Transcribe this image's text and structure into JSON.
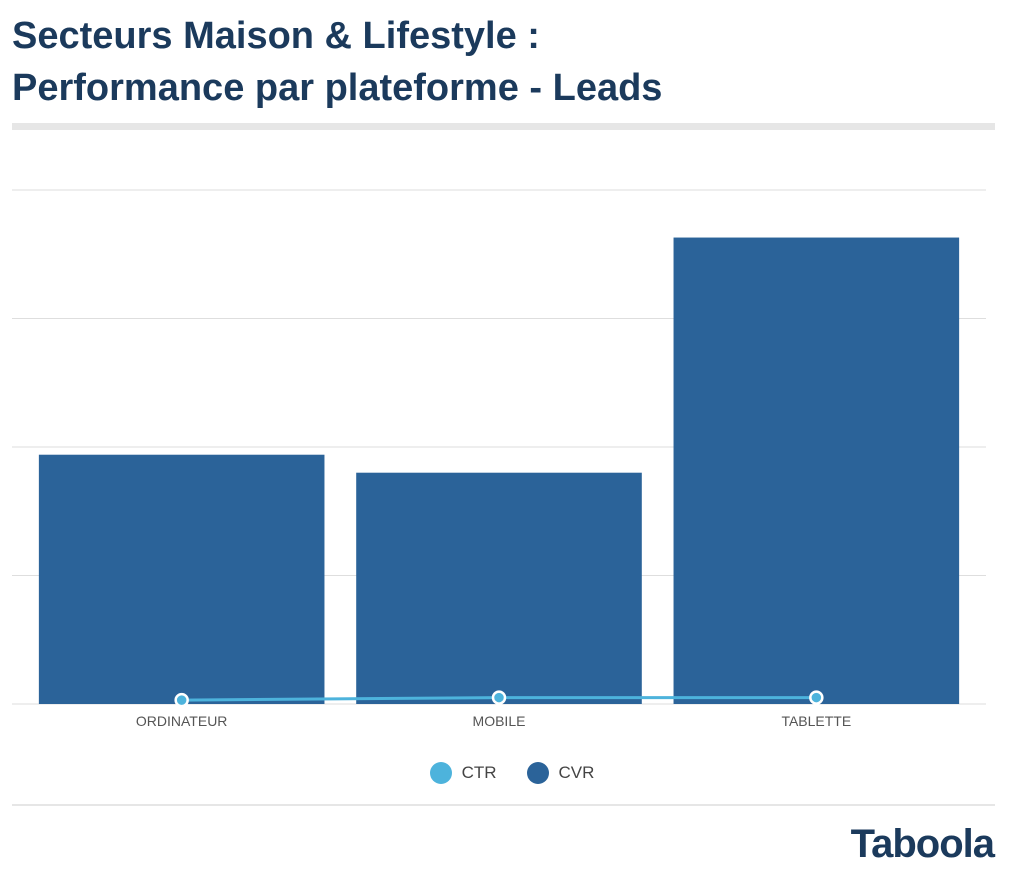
{
  "title_line1": "Secteurs Maison & Lifestyle :",
  "title_line2": "Performance par plateforme - Leads",
  "logo_text": "Taboola",
  "colors": {
    "title": "#1b3a5c",
    "bar": "#2b6399",
    "line": "#4db3dc",
    "grid": "#dedede"
  },
  "chart_data": {
    "type": "bar",
    "categories": [
      "ORDINATEUR",
      "MOBILE",
      "TABLETTE"
    ],
    "series": [
      {
        "name": "CVR",
        "type": "bar",
        "values": [
          1.94,
          1.8,
          3.63
        ]
      },
      {
        "name": "CTR",
        "type": "line",
        "values": [
          0.03,
          0.05,
          0.05
        ]
      }
    ],
    "ylim": [
      0,
      4
    ],
    "grid": true,
    "legend": "bottom-center",
    "legend_entries": [
      {
        "name": "CTR",
        "color": "#4db3dc"
      },
      {
        "name": "CVR",
        "color": "#2b6399"
      }
    ]
  }
}
